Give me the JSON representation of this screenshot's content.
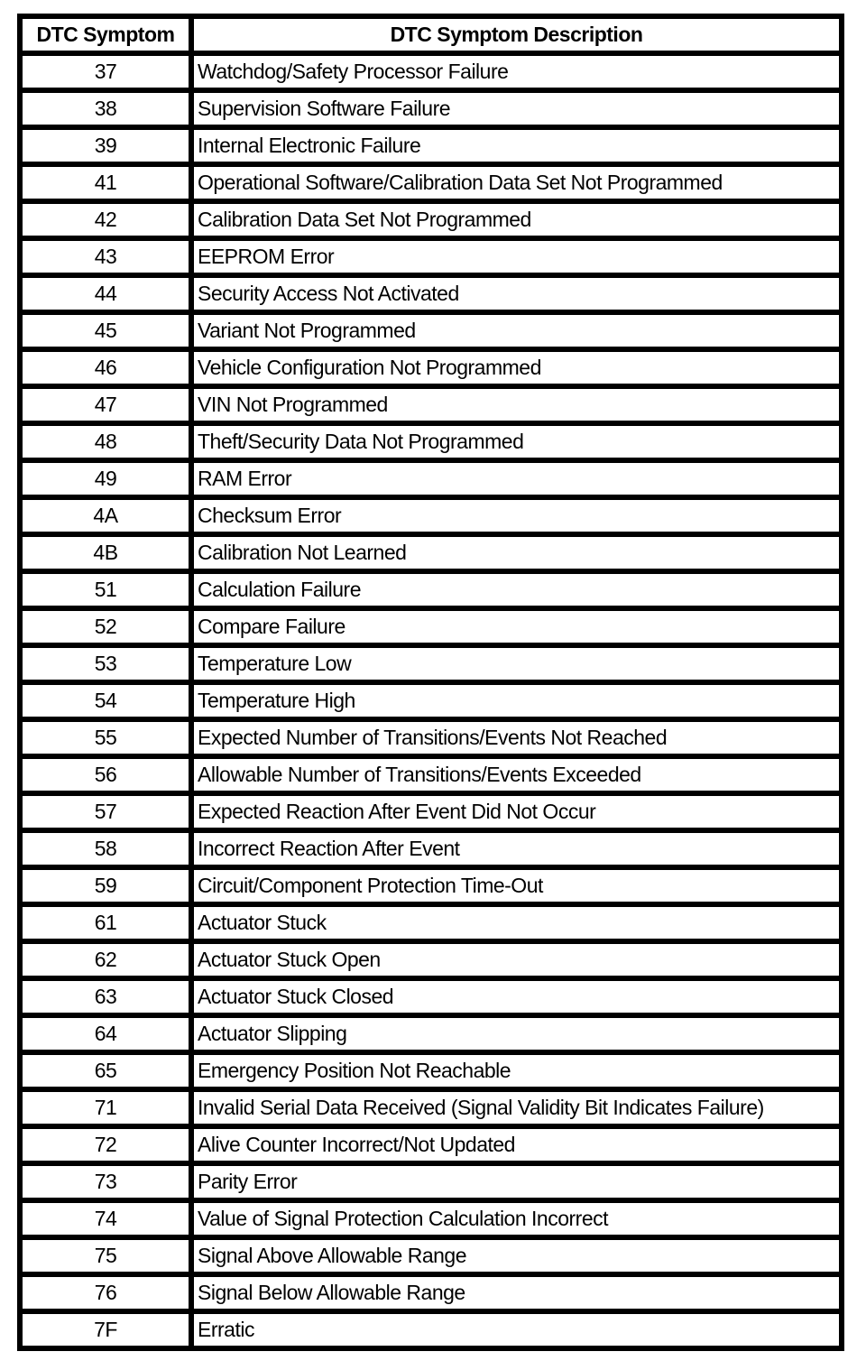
{
  "page": {
    "background": "#ffffff",
    "border_color": "#000000",
    "text_color": "#000000"
  },
  "table": {
    "headers": [
      "DTC Symptom",
      "DTC Symptom Description"
    ],
    "rows": [
      [
        "37",
        "Watchdog/Safety Processor Failure"
      ],
      [
        "38",
        "Supervision Software Failure"
      ],
      [
        "39",
        "Internal Electronic Failure"
      ],
      [
        "41",
        "Operational Software/Calibration Data Set Not Programmed"
      ],
      [
        "42",
        "Calibration Data Set Not Programmed"
      ],
      [
        "43",
        "EEPROM Error"
      ],
      [
        "44",
        "Security Access Not Activated"
      ],
      [
        "45",
        "Variant Not Programmed"
      ],
      [
        "46",
        "Vehicle Configuration Not Programmed"
      ],
      [
        "47",
        "VIN Not Programmed"
      ],
      [
        "48",
        "Theft/Security Data Not Programmed"
      ],
      [
        "49",
        "RAM Error"
      ],
      [
        "4A",
        "Checksum Error"
      ],
      [
        "4B",
        "Calibration Not Learned"
      ],
      [
        "51",
        "Calculation Failure"
      ],
      [
        "52",
        "Compare Failure"
      ],
      [
        "53",
        "Temperature Low"
      ],
      [
        "54",
        "Temperature High"
      ],
      [
        "55",
        "Expected Number of Transitions/Events Not Reached"
      ],
      [
        "56",
        "Allowable Number of Transitions/Events Exceeded"
      ],
      [
        "57",
        "Expected Reaction After Event Did Not Occur"
      ],
      [
        "58",
        "Incorrect Reaction After Event"
      ],
      [
        "59",
        "Circuit/Component Protection Time-Out"
      ],
      [
        "61",
        "Actuator Stuck"
      ],
      [
        "62",
        "Actuator Stuck Open"
      ],
      [
        "63",
        "Actuator Stuck Closed"
      ],
      [
        "64",
        "Actuator Slipping"
      ],
      [
        "65",
        "Emergency Position Not Reachable"
      ],
      [
        "71",
        "Invalid Serial Data Received (Signal Validity Bit Indicates Failure)"
      ],
      [
        "72",
        "Alive Counter Incorrect/Not Updated"
      ],
      [
        "73",
        "Parity Error"
      ],
      [
        "74",
        "Value of Signal Protection Calculation Incorrect"
      ],
      [
        "75",
        "Signal Above Allowable Range"
      ],
      [
        "76",
        "Signal Below Allowable Range"
      ],
      [
        "7F",
        "Erratic"
      ]
    ]
  }
}
